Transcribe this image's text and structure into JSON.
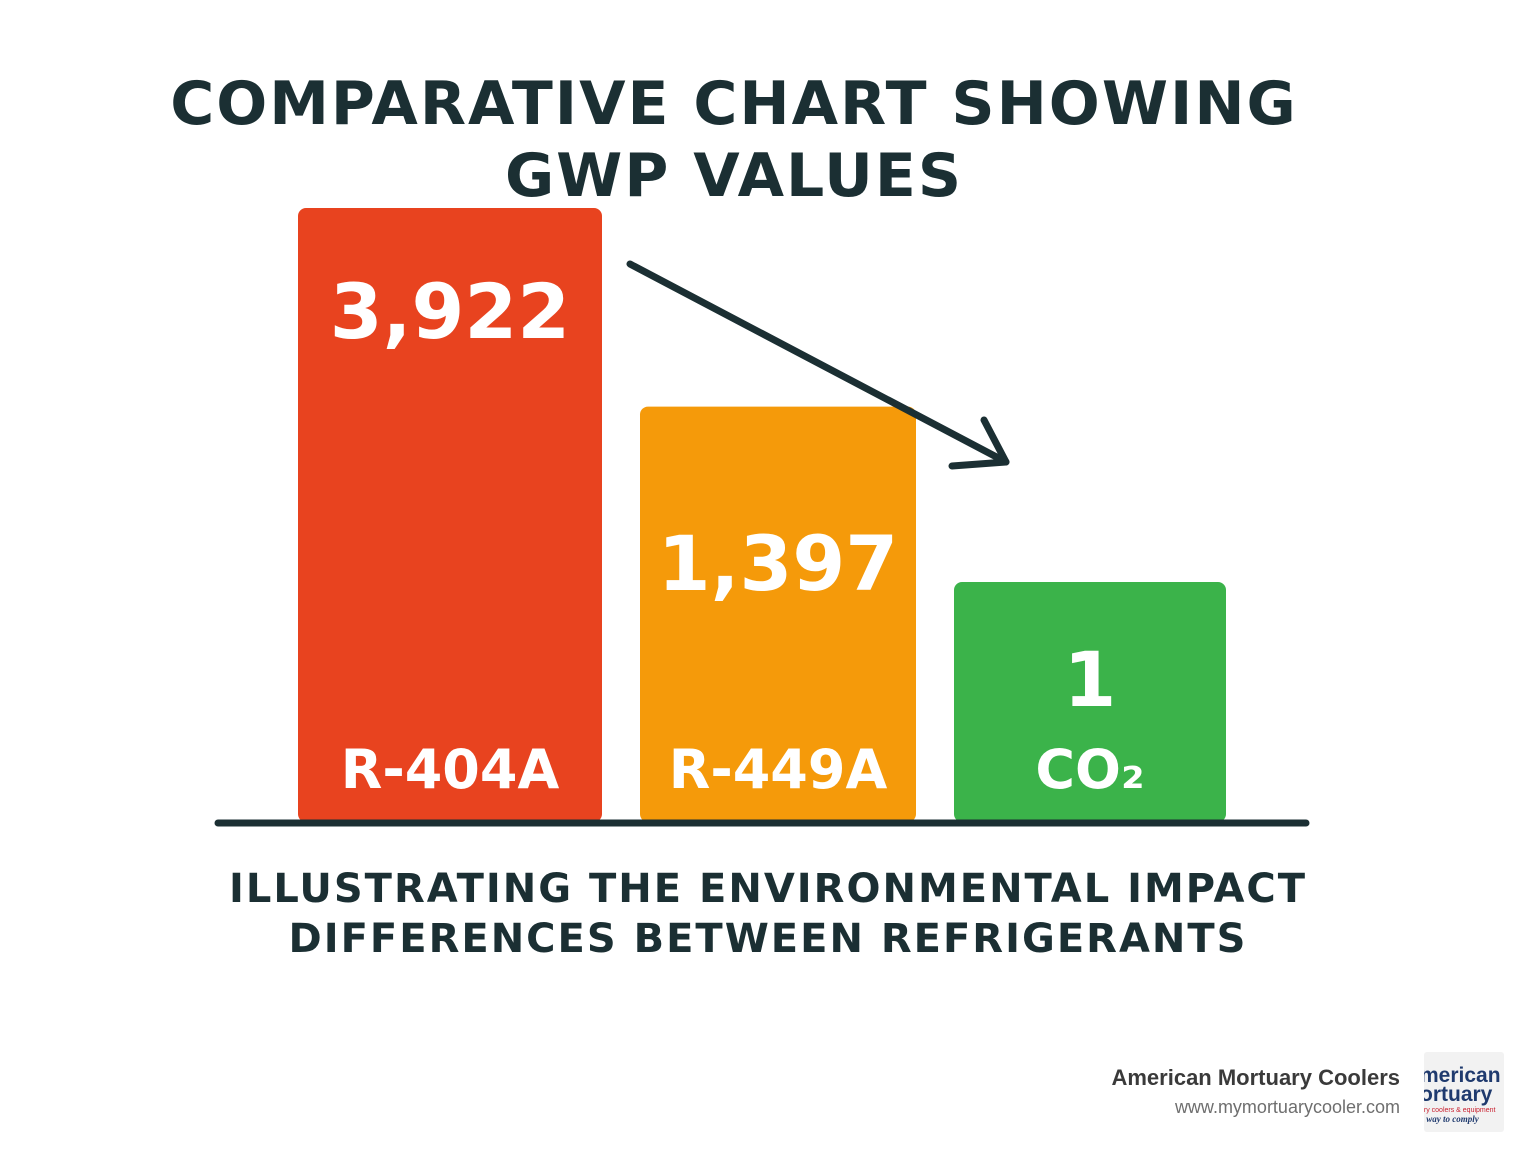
{
  "title": {
    "line1": "COMPARATIVE CHART SHOWING",
    "line2": "GWP VALUES"
  },
  "subtitle": {
    "line1": "ILLUSTRATING THE ENVIRONMENTAL IMPACT",
    "line2": "DIFFERENCES BETWEEN REFRIGERANTS"
  },
  "chart_data": {
    "type": "bar",
    "title": "COMPARATIVE CHART SHOWING GWP VALUES",
    "subtitle": "ILLUSTRATING THE ENVIRONMENTAL IMPACT DIFFERENCES BETWEEN REFRIGERANTS",
    "categories": [
      "R-404A",
      "R-449A",
      "CO₂"
    ],
    "values": [
      3922,
      1397,
      1
    ],
    "value_labels": [
      "3,922",
      "1,397",
      "1"
    ],
    "colors": [
      "#e8431f",
      "#f59a0a",
      "#3bb34a"
    ],
    "axis_color": "#1b2f33",
    "grid": false,
    "legend": "none",
    "annotation": "downward arrow"
  },
  "brand": {
    "name": "American Mortuary Coolers",
    "url": "www.mymortuarycooler.com",
    "logo_line1": "merican",
    "logo_line2": "ortuary",
    "logo_line3": "ary coolers & equipment",
    "logo_line4": "e way to comply",
    "logo_color_dark": "#1f3a6e",
    "logo_color_red": "#c8202f"
  }
}
